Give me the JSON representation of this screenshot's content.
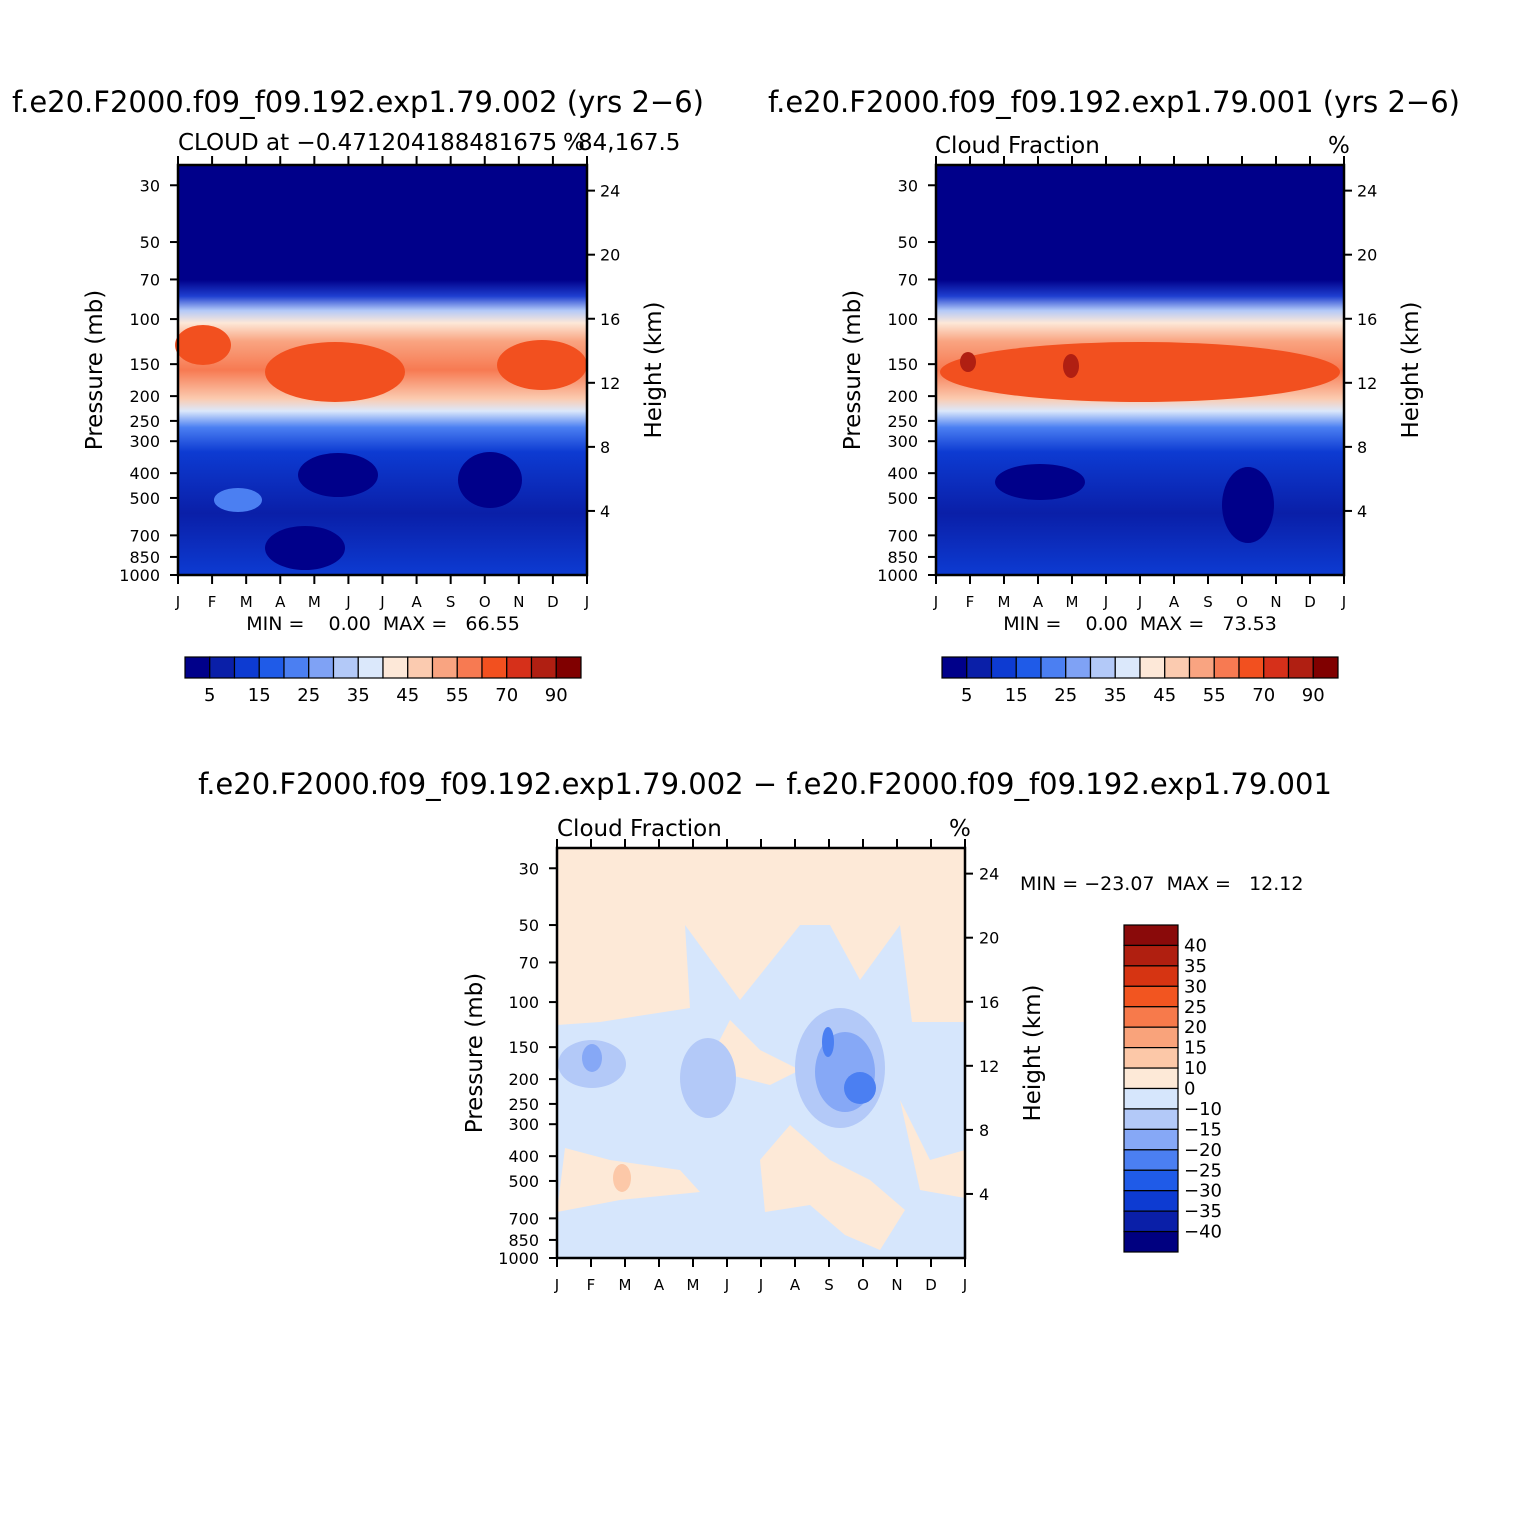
{
  "colors": {
    "abs_palette": [
      "#00008a",
      "#0a1fa8",
      "#0d3bd2",
      "#1f5be8",
      "#4b7ff2",
      "#7fa2f5",
      "#b3c9f8",
      "#dbe8fb",
      "#fde8d8",
      "#fbcbb0",
      "#f9a481",
      "#f77a52",
      "#f2501f",
      "#d6301a",
      "#b01f12",
      "#800000"
    ],
    "diff_palette": [
      "#000080",
      "#0a1fa8",
      "#0d3bd2",
      "#1f5be8",
      "#4b7ff2",
      "#86a8f6",
      "#b3c9f8",
      "#d6e6fc",
      "#fde9d7",
      "#fcc8a8",
      "#f9a37b",
      "#f77a4b",
      "#f25520",
      "#d63412",
      "#b01f10",
      "#8a0a0a"
    ]
  },
  "chart_data": [
    {
      "id": "left",
      "type": "contour",
      "title": "f.e20.F2000.f09_f09.192.exp1.79.002 (yrs 2−6)",
      "subtitle_left": "CLOUD at −0.471204188481675",
      "subtitle_right": "%",
      "subtitle_right2": "84,167.5",
      "xlabel": "",
      "ylabel_left": "Pressure (mb)",
      "ylabel_right": "Height (km)",
      "x_ticks": [
        "J",
        "F",
        "M",
        "A",
        "M",
        "J",
        "J",
        "A",
        "S",
        "O",
        "N",
        "D",
        "J"
      ],
      "pressure_ticks": [
        30,
        50,
        70,
        100,
        150,
        200,
        250,
        300,
        400,
        500,
        700,
        850,
        1000
      ],
      "height_ticks": [
        24,
        20,
        16,
        12,
        8,
        4
      ],
      "ylim_pressure": [
        1000,
        25
      ],
      "min_max_text": "MIN =    0.00  MAX =   66.55",
      "min": 0.0,
      "max": 66.55,
      "colorbar_labels": [
        "5",
        "15",
        "25",
        "35",
        "45",
        "55",
        "70",
        "90"
      ],
      "colorbar_levels": [
        0,
        5,
        10,
        15,
        20,
        25,
        30,
        35,
        40,
        45,
        50,
        55,
        60,
        70,
        80,
        90
      ]
    },
    {
      "id": "right",
      "type": "contour",
      "title": "f.e20.F2000.f09_f09.192.exp1.79.001 (yrs 2−6)",
      "subtitle_left": "Cloud Fraction",
      "subtitle_right": "%",
      "ylabel_left": "Pressure (mb)",
      "ylabel_right": "Height (km)",
      "x_ticks": [
        "J",
        "F",
        "M",
        "A",
        "M",
        "J",
        "J",
        "A",
        "S",
        "O",
        "N",
        "D",
        "J"
      ],
      "pressure_ticks": [
        30,
        50,
        70,
        100,
        150,
        200,
        250,
        300,
        400,
        500,
        700,
        850,
        1000
      ],
      "height_ticks": [
        24,
        20,
        16,
        12,
        8,
        4
      ],
      "ylim_pressure": [
        1000,
        25
      ],
      "min_max_text": "MIN =    0.00  MAX =   73.53",
      "min": 0.0,
      "max": 73.53,
      "colorbar_labels": [
        "5",
        "15",
        "25",
        "35",
        "45",
        "55",
        "70",
        "90"
      ],
      "colorbar_levels": [
        0,
        5,
        10,
        15,
        20,
        25,
        30,
        35,
        40,
        45,
        50,
        55,
        60,
        70,
        80,
        90
      ]
    },
    {
      "id": "diff",
      "type": "contour",
      "title": "f.e20.F2000.f09_f09.192.exp1.79.002 − f.e20.F2000.f09_f09.192.exp1.79.001",
      "subtitle_left": "Cloud Fraction",
      "subtitle_right": "%",
      "ylabel_left": "Pressure (mb)",
      "ylabel_right": "Height (km)",
      "x_ticks": [
        "J",
        "F",
        "M",
        "A",
        "M",
        "J",
        "J",
        "A",
        "S",
        "O",
        "N",
        "D",
        "J"
      ],
      "pressure_ticks": [
        30,
        50,
        70,
        100,
        150,
        200,
        250,
        300,
        400,
        500,
        700,
        850,
        1000
      ],
      "height_ticks": [
        24,
        20,
        16,
        12,
        8,
        4
      ],
      "ylim_pressure": [
        1000,
        25
      ],
      "min_max_text": "MIN = −23.07  MAX =   12.12",
      "min": -23.07,
      "max": 12.12,
      "colorbar_labels": [
        "40",
        "35",
        "30",
        "25",
        "20",
        "15",
        "10",
        "0",
        "−10",
        "−15",
        "−20",
        "−25",
        "−30",
        "−35",
        "−40"
      ],
      "colorbar_levels": [
        40,
        35,
        30,
        25,
        20,
        15,
        10,
        0,
        -10,
        -15,
        -20,
        -25,
        -30,
        -35,
        -40
      ]
    }
  ]
}
